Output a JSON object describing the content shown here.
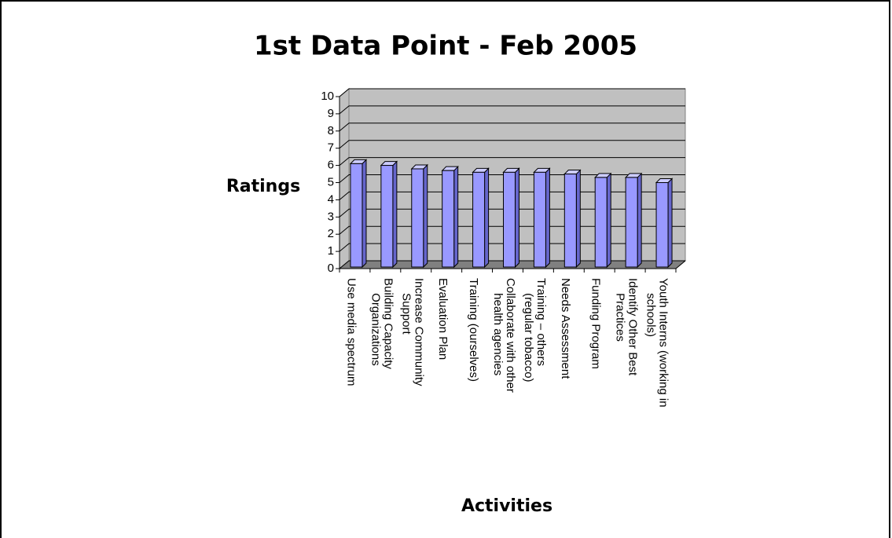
{
  "chart_data": {
    "type": "bar3d",
    "title": "1st Data Point - Feb 2005",
    "y_label": "Ratings",
    "x_label": "Activities",
    "categories": [
      "Use media spectrum",
      "Building Capacity Organizations",
      "Increase Community Support",
      "Evaluation Plan",
      "Training (ourselves)",
      "Collaborate with other health agencies",
      "Training – others (regular tobacco)",
      "Needs Assessment",
      "Funding Program",
      "Identify Other Best Practices",
      "Youth Interns (working in schools)"
    ],
    "values": [
      6.1,
      6.0,
      5.8,
      5.7,
      5.6,
      5.6,
      5.6,
      5.5,
      5.3,
      5.3,
      5.0
    ],
    "color": "#9999ff",
    "ylim": [
      0,
      10
    ],
    "yticks": [
      0,
      1,
      2,
      3,
      4,
      5,
      6,
      7,
      8,
      9,
      10
    ],
    "grid": true
  }
}
